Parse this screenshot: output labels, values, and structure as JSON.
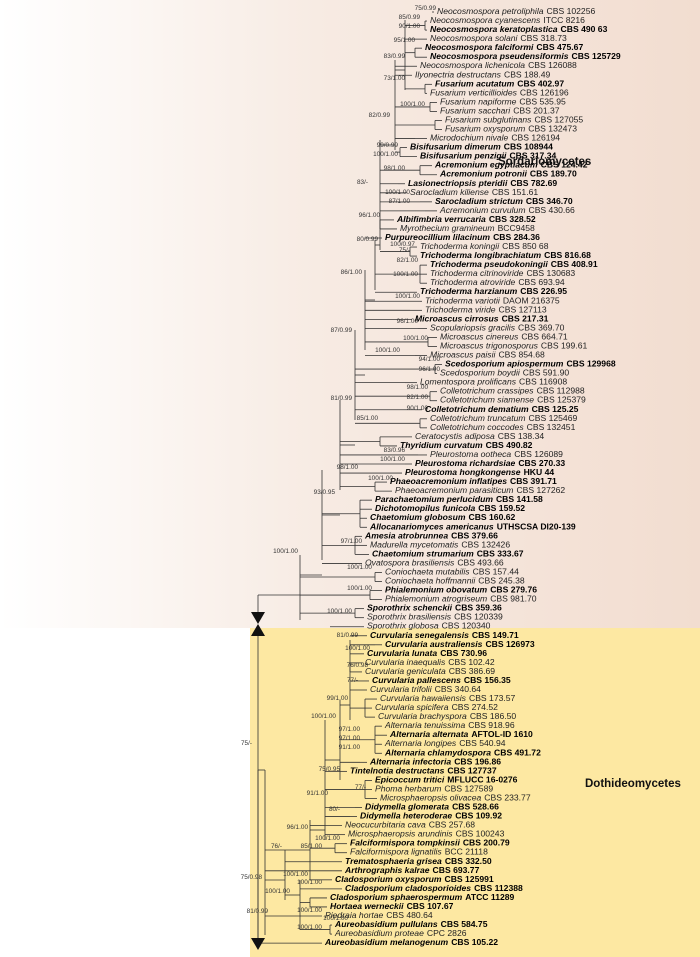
{
  "taxa": [
    {
      "name": "Neocosmospora petroliphila",
      "strain": "CBS 102256",
      "bold": false
    },
    {
      "name": "Neocosmospora cyanescens",
      "strain": "ITCC 8216",
      "bold": false
    },
    {
      "name": "Neocosmospora keratoplastica",
      "strain": "CBS 490 63",
      "bold": true
    },
    {
      "name": "Neocosmospora solani",
      "strain": "CBS 318.73",
      "bold": false
    },
    {
      "name": "Neocosmospora falciformi",
      "strain": "CBS 475.67",
      "bold": true
    },
    {
      "name": "Neocosmospora pseudensiformis",
      "strain": "CBS 125729",
      "bold": true
    },
    {
      "name": "Neocosmospora lichenicola",
      "strain": "CBS 126088",
      "bold": false
    },
    {
      "name": "Ilyonectria destructans",
      "strain": "CBS 188.49",
      "bold": false
    },
    {
      "name": "Fusarium acutatum",
      "strain": "CBS 402.97",
      "bold": true
    },
    {
      "name": "Fusarium verticillioides",
      "strain": "CBS 126196",
      "bold": false
    },
    {
      "name": "Fusarium napiforme",
      "strain": "CBS 535.95",
      "bold": false
    },
    {
      "name": "Fusarium sacchari",
      "strain": "CBS 201.37",
      "bold": false
    },
    {
      "name": "Fusarium subglutinans",
      "strain": "CBS 127055",
      "bold": false
    },
    {
      "name": "Fusarium oxysporum",
      "strain": "CBS 132473",
      "bold": false
    },
    {
      "name": "Microdochium nivale",
      "strain": "CBS 126194",
      "bold": false
    },
    {
      "name": "Bisifusarium dimerum",
      "strain": "CBS 108944",
      "bold": true
    },
    {
      "name": "Bisifusarium penzigii",
      "strain": "CBS 317.34",
      "bold": true
    },
    {
      "name": "Acremonium egyptiacum",
      "strain": "CBS 124.42",
      "bold": true
    },
    {
      "name": "Acremonium potronii",
      "strain": "CBS 189.70",
      "bold": true
    },
    {
      "name": "Lasionectriopsis pteridii",
      "strain": "CBS 782.69",
      "bold": true
    },
    {
      "name": "Sarocladium kiliense",
      "strain": "CBS 151.61",
      "bold": false
    },
    {
      "name": "Sarocladium strictum",
      "strain": "CBS 346.70",
      "bold": true
    },
    {
      "name": "Acremonium curvulum",
      "strain": "CBS 430.66",
      "bold": false
    },
    {
      "name": "Albifimbria verrucaria",
      "strain": "CBS 328.52",
      "bold": true
    },
    {
      "name": "Myrothecium gramineum",
      "strain": "BCC9458",
      "bold": false
    },
    {
      "name": "Purpureocillium lilacinum",
      "strain": "CBS 284.36",
      "bold": true
    },
    {
      "name": "Trichoderma koningii",
      "strain": "CBS 850 68",
      "bold": false
    },
    {
      "name": "Trichoderma longibrachiatum",
      "strain": "CBS 816.68",
      "bold": true
    },
    {
      "name": "Trichoderma pseudokoningii",
      "strain": "CBS 408.91",
      "bold": true
    },
    {
      "name": "Trichoderma citrinoviride",
      "strain": "CBS 130683",
      "bold": false
    },
    {
      "name": "Trichoderma atroviride",
      "strain": "CBS 693.94",
      "bold": false
    },
    {
      "name": "Trichoderma harzianum",
      "strain": "CBS 226.95",
      "bold": true
    },
    {
      "name": "Trichoderma variotii",
      "strain": "DAOM 216375",
      "bold": false
    },
    {
      "name": "Trichoderma viride",
      "strain": "CBS 127113",
      "bold": false
    },
    {
      "name": "Microascus cirrosus",
      "strain": "CBS 217.31",
      "bold": true
    },
    {
      "name": "Scopulariopsis gracilis",
      "strain": "CBS 369.70",
      "bold": false
    },
    {
      "name": "Microascus cinereus",
      "strain": "CBS 664.71",
      "bold": false
    },
    {
      "name": "Microascus trigonosporus",
      "strain": "CBS 199.61",
      "bold": false
    },
    {
      "name": "Microascus paisii",
      "strain": "CBS 854.68",
      "bold": false
    },
    {
      "name": "Scedosporium apiospermum",
      "strain": "CBS 129968",
      "bold": true
    },
    {
      "name": "Scedosporium boydii",
      "strain": "CBS 591.90",
      "bold": false
    },
    {
      "name": "Lomentospora prolificans",
      "strain": "CBS 116908",
      "bold": false
    },
    {
      "name": "Colletotrichum crassipes",
      "strain": "CBS 112988",
      "bold": false
    },
    {
      "name": "Colletotrichum siamense",
      "strain": "CBS 125379",
      "bold": false
    },
    {
      "name": "Colletotrichum dematium",
      "strain": "CBS 125.25",
      "bold": true
    },
    {
      "name": "Colletotrichum truncatum",
      "strain": "CBS 125469",
      "bold": false
    },
    {
      "name": "Colletotrichum coccodes",
      "strain": "CBS 132451",
      "bold": false
    },
    {
      "name": "Ceratocystis adiposa",
      "strain": "CBS 138.34",
      "bold": false
    },
    {
      "name": "Thyridium curvatum",
      "strain": "CBS 490.82",
      "bold": true
    },
    {
      "name": "Pleurostoma ootheca",
      "strain": "CBS 126089",
      "bold": false
    },
    {
      "name": "Pleurostoma richardsiae",
      "strain": "CBS 270.33",
      "bold": true
    },
    {
      "name": "Pleurostoma hongkongense",
      "strain": "HKU 44",
      "bold": true
    },
    {
      "name": "Phaeoacremonium inflatipes",
      "strain": "CBS 391.71",
      "bold": true
    },
    {
      "name": "Phaeoacremonium parasiticum",
      "strain": "CBS 127262",
      "bold": false
    },
    {
      "name": "Parachaetomium perlucidum",
      "strain": "CBS 141.58",
      "bold": true
    },
    {
      "name": "Dichotomopilus funicola",
      "strain": "CBS 159.52",
      "bold": true
    },
    {
      "name": "Chaetomium globosum",
      "strain": "CBS 160.62",
      "bold": true
    },
    {
      "name": "Allocanariomyces americanus",
      "strain": "UTHSCSA DI20-139",
      "bold": true
    },
    {
      "name": "Amesia atrobrunnea",
      "strain": "CBS 379.66",
      "bold": true
    },
    {
      "name": "Madurella mycetomatis",
      "strain": "CBS 132426",
      "bold": false
    },
    {
      "name": "Chaetomium strumarium",
      "strain": "CBS 333.67",
      "bold": true
    },
    {
      "name": "Ovatospora brasiliensis",
      "strain": "CBS 493.66",
      "bold": false
    },
    {
      "name": "Coniochaeta mutabilis",
      "strain": "CBS 157.44",
      "bold": false
    },
    {
      "name": "Coniochaeta hoffmannii",
      "strain": "CBS 245.38",
      "bold": false
    },
    {
      "name": "Phialemonium obovatum",
      "strain": "CBS 279.76",
      "bold": true
    },
    {
      "name": "Phialemonium atrogriseum",
      "strain": "CBS 981.70",
      "bold": false
    },
    {
      "name": "Sporothrix schenckii",
      "strain": "CBS 359.36",
      "bold": true
    },
    {
      "name": "Sporothrix brasiliensis",
      "strain": "CBS 120339",
      "bold": false
    },
    {
      "name": "Sporothrix globosa",
      "strain": "CBS 120340",
      "bold": false
    },
    {
      "name": "Curvularia senegalensis",
      "strain": "CBS 149.71",
      "bold": true
    },
    {
      "name": "Curvularia australiensis",
      "strain": "CBS 126973",
      "bold": true
    },
    {
      "name": "Curvularia lunata",
      "strain": "CBS 730.96",
      "bold": true
    },
    {
      "name": "Curvularia inaequalis",
      "strain": "CBS 102.42",
      "bold": false
    },
    {
      "name": "Curvularia geniculata",
      "strain": "CBS 386.69",
      "bold": false
    },
    {
      "name": "Curvularia pallescens",
      "strain": "CBS 156.35",
      "bold": true
    },
    {
      "name": "Curvularia trifolii",
      "strain": "CBS 340.64",
      "bold": false
    },
    {
      "name": "Curvularia hawaiiensis",
      "strain": "CBS 173.57",
      "bold": false
    },
    {
      "name": "Curvularia spicifera",
      "strain": "CBS 274.52",
      "bold": false
    },
    {
      "name": "Curvularia brachyspora",
      "strain": "CBS 186.50",
      "bold": false
    },
    {
      "name": "Alternaria tenuissima",
      "strain": "CBS 918.96",
      "bold": false
    },
    {
      "name": "Alternaria alternata",
      "strain": "AFTOL-ID 1610",
      "bold": true
    },
    {
      "name": "Alternaria longipes",
      "strain": "CBS 540.94",
      "bold": false
    },
    {
      "name": "Alternaria chlamydospora",
      "strain": "CBS 491.72",
      "bold": true
    },
    {
      "name": "Alternaria infectoria",
      "strain": "CBS 196.86",
      "bold": true
    },
    {
      "name": "Tintelnotia destructans",
      "strain": "CBS 127737",
      "bold": true
    },
    {
      "name": "Epicoccum tritici",
      "strain": "MFLUCC 16-0276",
      "bold": true
    },
    {
      "name": "Phoma herbarum",
      "strain": "CBS 127589",
      "bold": false
    },
    {
      "name": "Microsphaeropsis olivacea",
      "strain": "CBS 233.77",
      "bold": false
    },
    {
      "name": "Didymella glomerata",
      "strain": "CBS 528.66",
      "bold": true
    },
    {
      "name": "Didymella heteroderae",
      "strain": "CBS 109.92",
      "bold": true
    },
    {
      "name": "Neocucurbitaria cava",
      "strain": "CBS 257.68",
      "bold": false
    },
    {
      "name": "Microsphaeropsis arundinis",
      "strain": "CBS 100243",
      "bold": false
    },
    {
      "name": "Falciformispora tompkinsii",
      "strain": "CBS 200.79",
      "bold": true
    },
    {
      "name": "Falciformispora lignatilis",
      "strain": "BCC 21118",
      "bold": false
    },
    {
      "name": "Trematosphaeria grisea",
      "strain": "CBS 332.50",
      "bold": true
    },
    {
      "name": "Arthrographis kalrae",
      "strain": "CBS 693.77",
      "bold": true
    },
    {
      "name": "Cladosporium oxysporum",
      "strain": "CBS 125991",
      "bold": true
    },
    {
      "name": "Cladosporium cladosporioides",
      "strain": "CBS 112388",
      "bold": true
    },
    {
      "name": "Cladosporium sphaerospermum",
      "strain": "ATCC 11289",
      "bold": true
    },
    {
      "name": "Hortaea werneckii",
      "strain": "CBS 107.67",
      "bold": true
    },
    {
      "name": "Piedraia hortae",
      "strain": "CBS 480.64",
      "bold": false
    },
    {
      "name": "Aureobasidium pullulans",
      "strain": "CBS 584.75",
      "bold": true
    },
    {
      "name": "Aureobasidium proteae",
      "strain": "CPC 2826",
      "bold": false
    },
    {
      "name": "Aureobasidium melanogenum",
      "strain": "CBS 105.22",
      "bold": true
    }
  ],
  "support_values": [
    "75/0.99",
    "85/0.99",
    "90/1.00",
    "95/1.00",
    "83/0.99",
    "73/1.00",
    "100/1.00",
    "82/0.99",
    "99/0.99",
    "100/1.00",
    "98/1.00",
    "83/-",
    "100/1.00",
    "87/1.00",
    "96/1.00",
    "80/0.99",
    "100/0.97",
    "75/-",
    "82/1.00",
    "100/1.00",
    "100/1.00",
    "86/1.00",
    "96/1.00",
    "100/1.00",
    "100/1.00",
    "94/1.00",
    "96/1.00",
    "87/0.99",
    "98/1.00",
    "82/1.00",
    "90/1.00",
    "85/1.00",
    "81/0.99",
    "83/0.96",
    "100/1.00",
    "98/1.00",
    "100/1.00",
    "93/0.95",
    "97/1.00",
    "100/1.00",
    "100/1.00",
    "100/1.00",
    "100/1.00",
    "81/0.99",
    "100/1.00",
    "76/0.98",
    "77/-",
    "99/1.00",
    "100/1.00",
    "97/1.00",
    "97/1.00",
    "91/1.00",
    "75/0.95",
    "91/1.00",
    "77/-",
    "80/-",
    "96/1.00",
    "100/1.00",
    "85/1.00",
    "76/-",
    "100/1.00",
    "100/1.00",
    "100/1.00",
    "100/1.00",
    "81/0.99",
    "100/1.00",
    "100/1.00",
    "75/0.98",
    "75/-"
  ],
  "clade_labels": [
    "Sordariomycetes",
    "Dothideomycetes"
  ]
}
